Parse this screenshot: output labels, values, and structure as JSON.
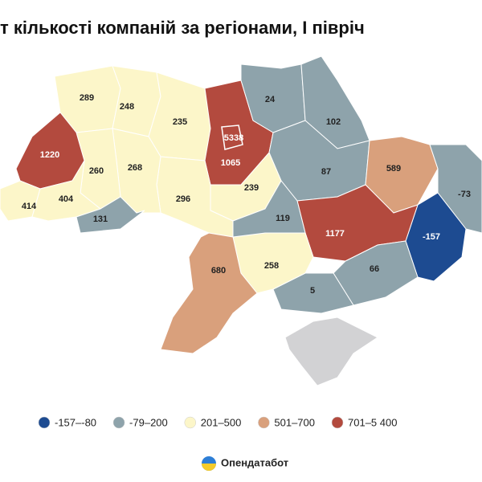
{
  "chart_data": {
    "type": "choropleth",
    "title": "т кількості компаній за регіонами, І півріч",
    "regions": [
      {
        "value": 289,
        "color": "#fcf6c9"
      },
      {
        "value": 248,
        "color": "#fcf6c9"
      },
      {
        "value": 235,
        "color": "#fcf6c9"
      },
      {
        "value": 1065,
        "color": "#b34a3e"
      },
      {
        "value": 5338,
        "color": "#b34a3e"
      },
      {
        "value": 24,
        "color": "#8ea3ab"
      },
      {
        "value": 102,
        "color": "#8ea3ab"
      },
      {
        "value": 87,
        "color": "#8ea3ab"
      },
      {
        "value": 589,
        "color": "#d9a07c"
      },
      {
        "value": -73,
        "color": "#8ea3ab"
      },
      {
        "value": -157,
        "color": "#1d4b91"
      },
      {
        "value": 1177,
        "color": "#b34a3e"
      },
      {
        "value": 66,
        "color": "#8ea3ab"
      },
      {
        "value": 5,
        "color": "#8ea3ab"
      },
      {
        "value": 258,
        "color": "#fcf6c9"
      },
      {
        "value": 239,
        "color": "#fcf6c9"
      },
      {
        "value": 119,
        "color": "#8ea3ab"
      },
      {
        "value": 296,
        "color": "#fcf6c9"
      },
      {
        "value": 268,
        "color": "#fcf6c9"
      },
      {
        "value": 260,
        "color": "#fcf6c9"
      },
      {
        "value": 1220,
        "color": "#b34a3e"
      },
      {
        "value": 414,
        "color": "#fcf6c9"
      },
      {
        "value": 404,
        "color": "#fcf6c9"
      },
      {
        "value": 131,
        "color": "#8ea3ab"
      },
      {
        "value": 680,
        "color": "#d9a07c"
      }
    ],
    "no_data_color": "#d2d2d4",
    "legend": [
      {
        "label": "-157–-80",
        "color": "#1d4b91"
      },
      {
        "label": "-79–200",
        "color": "#8ea3ab"
      },
      {
        "label": "201–500",
        "color": "#fcf6c9"
      },
      {
        "label": "501–700",
        "color": "#d9a07c"
      },
      {
        "label": "701–5 400",
        "color": "#b34a3e"
      }
    ],
    "brand": "Опендатабот"
  }
}
